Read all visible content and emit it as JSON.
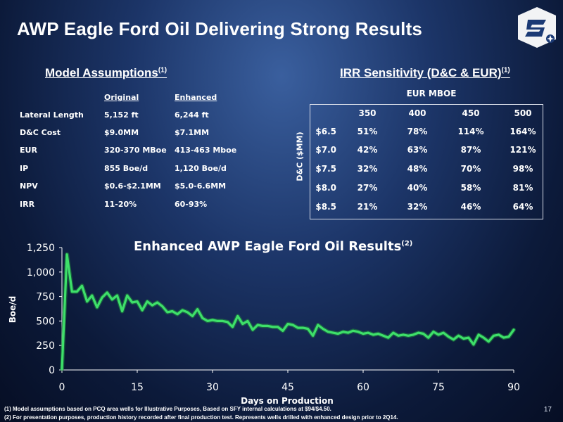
{
  "title": "AWP Eagle Ford Oil Delivering Strong Results",
  "page_number": "17",
  "model_assumptions": {
    "heading": "Model Assumptions",
    "heading_sup": "(1)",
    "col_headers": [
      "Original",
      "Enhanced"
    ],
    "rows": [
      {
        "label": "Lateral Length",
        "original": "5,152 ft",
        "enhanced": "6,244 ft"
      },
      {
        "label": "D&C Cost",
        "original": "$9.0MM",
        "enhanced": "$7.1MM"
      },
      {
        "label": "EUR",
        "original": "320-370 MBoe",
        "enhanced": "413-463 Mboe"
      },
      {
        "label": "IP",
        "original": "855 Boe/d",
        "enhanced": "1,120 Boe/d"
      },
      {
        "label": "NPV",
        "original": "$0.6-$2.1MM",
        "enhanced": "$5.0-6.6MM"
      },
      {
        "label": "IRR",
        "original": "11-20%",
        "enhanced": "60-93%"
      }
    ]
  },
  "irr_sensitivity": {
    "heading": "IRR Sensitivity (D&C & EUR)",
    "heading_sup": "(1)",
    "col_title": "EUR MBOE",
    "row_title": "D&C ($MM)",
    "cols": [
      "350",
      "400",
      "450",
      "500"
    ],
    "rows": [
      {
        "label": "$6.5",
        "values": [
          "51%",
          "78%",
          "114%",
          "164%"
        ]
      },
      {
        "label": "$7.0",
        "values": [
          "42%",
          "63%",
          "87%",
          "121%"
        ]
      },
      {
        "label": "$7.5",
        "values": [
          "32%",
          "48%",
          "70%",
          "98%"
        ]
      },
      {
        "label": "$8.0",
        "values": [
          "27%",
          "40%",
          "58%",
          "81%"
        ]
      },
      {
        "label": "$8.5",
        "values": [
          "21%",
          "32%",
          "46%",
          "64%"
        ]
      }
    ]
  },
  "chart_data": {
    "type": "line",
    "title": "Enhanced AWP Eagle Ford Oil Results",
    "title_sup": "(2)",
    "xlabel": "Days on Production",
    "ylabel": "Boe/d",
    "xlim": [
      0,
      90
    ],
    "ylim": [
      0,
      1250
    ],
    "x_ticks": [
      "0",
      "15",
      "30",
      "45",
      "60",
      "75",
      "90"
    ],
    "y_ticks": [
      "0",
      "250",
      "500",
      "750",
      "1,000",
      "1,250"
    ],
    "series_color": "#3ee06a",
    "x": [
      0,
      1,
      2,
      3,
      4,
      5,
      6,
      7,
      8,
      9,
      10,
      11,
      12,
      13,
      14,
      15,
      16,
      17,
      18,
      19,
      20,
      21,
      22,
      23,
      24,
      25,
      26,
      27,
      28,
      29,
      30,
      31,
      32,
      33,
      34,
      35,
      36,
      37,
      38,
      39,
      40,
      41,
      42,
      43,
      44,
      45,
      46,
      47,
      48,
      49,
      50,
      51,
      52,
      53,
      54,
      55,
      56,
      57,
      58,
      59,
      60,
      61,
      62,
      63,
      64,
      65,
      66,
      67,
      68,
      69,
      70,
      71,
      72,
      73,
      74,
      75,
      76,
      77,
      78,
      79,
      80,
      81,
      82,
      83,
      84,
      85,
      86,
      87,
      88,
      89,
      90
    ],
    "y": [
      10,
      1180,
      800,
      800,
      860,
      700,
      760,
      640,
      740,
      790,
      720,
      760,
      600,
      760,
      690,
      700,
      610,
      700,
      660,
      690,
      650,
      590,
      600,
      570,
      610,
      590,
      550,
      620,
      530,
      500,
      510,
      500,
      500,
      490,
      440,
      550,
      470,
      500,
      410,
      460,
      450,
      450,
      440,
      440,
      400,
      470,
      460,
      430,
      430,
      420,
      350,
      460,
      420,
      390,
      380,
      370,
      390,
      380,
      400,
      390,
      370,
      380,
      360,
      370,
      350,
      330,
      380,
      350,
      360,
      350,
      360,
      380,
      370,
      330,
      390,
      360,
      380,
      340,
      310,
      350,
      320,
      330,
      260,
      360,
      330,
      290,
      350,
      360,
      330,
      340,
      410
    ]
  },
  "footnotes": [
    "(1)   Model assumptions based on PCQ area wells for Illustrative Purposes, Based on SFY internal calculations at $94/$4.50.",
    "(2)   For presentation purposes, production history recorded after final production test.  Represents wells drilled with enhanced design prior to 2Q14."
  ]
}
